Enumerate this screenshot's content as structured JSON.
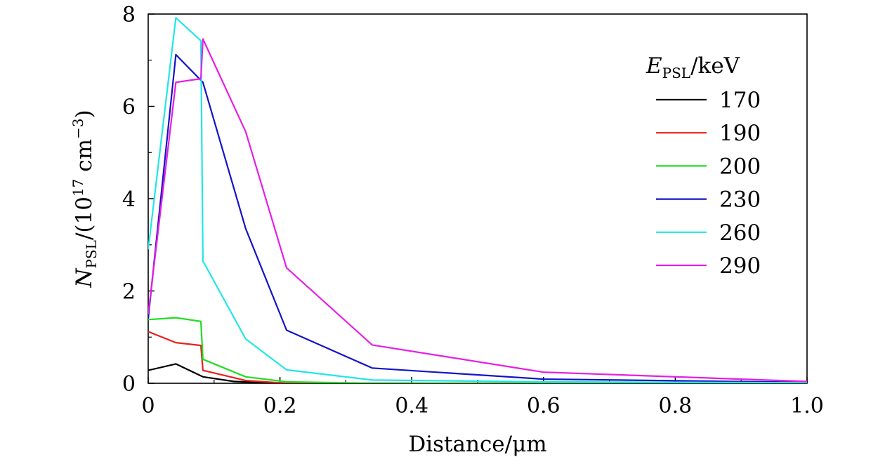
{
  "chart_data": {
    "type": "line",
    "title": "",
    "xlabel": "Distance/μm",
    "ylabel": {
      "symbol": "N",
      "subscript": "PSL",
      "unit_prefix": "/(10",
      "exponent": "17",
      "unit_mid": " cm",
      "unit_exponent": "−3",
      "unit_suffix": ")"
    },
    "xlim": [
      0,
      1.0
    ],
    "ylim": [
      0,
      8
    ],
    "x_ticks": [
      "0",
      "0.2",
      "0.4",
      "0.6",
      "0.8",
      "1.0"
    ],
    "y_ticks": [
      "0",
      "2",
      "4",
      "6",
      "8"
    ],
    "legend": {
      "title_symbol": "E",
      "title_subscript": "PSL",
      "title_unit": "/keV",
      "placement": "top-right"
    },
    "series": [
      {
        "name": "170",
        "color": "#000000",
        "x": [
          0.0,
          0.042,
          0.083,
          0.13,
          0.2,
          1.0
        ],
        "y": [
          0.28,
          0.42,
          0.14,
          0.04,
          0.0,
          0.0
        ]
      },
      {
        "name": "190",
        "color": "#e8201a",
        "x": [
          0.0,
          0.042,
          0.08,
          0.083,
          0.148,
          0.21,
          1.0
        ],
        "y": [
          1.12,
          0.88,
          0.82,
          0.28,
          0.06,
          0.0,
          0.0
        ]
      },
      {
        "name": "200",
        "color": "#22dd22",
        "x": [
          0.0,
          0.042,
          0.08,
          0.083,
          0.148,
          0.21,
          0.34,
          1.0
        ],
        "y": [
          1.38,
          1.42,
          1.34,
          0.52,
          0.14,
          0.03,
          0.0,
          0.0
        ]
      },
      {
        "name": "230",
        "color": "#1414c8",
        "x": [
          0.0,
          0.042,
          0.083,
          0.148,
          0.21,
          0.34,
          0.6,
          1.0
        ],
        "y": [
          1.4,
          7.12,
          6.52,
          3.35,
          1.15,
          0.33,
          0.09,
          0.02
        ]
      },
      {
        "name": "260",
        "color": "#22e6e6",
        "x": [
          0.0,
          0.042,
          0.08,
          0.083,
          0.148,
          0.21,
          0.34,
          0.6,
          1.0
        ],
        "y": [
          2.9,
          7.92,
          7.42,
          2.65,
          0.96,
          0.29,
          0.07,
          0.03,
          0.01
        ]
      },
      {
        "name": "290",
        "color": "#e61ee6",
        "x": [
          0.0,
          0.042,
          0.08,
          0.083,
          0.148,
          0.21,
          0.34,
          0.6,
          1.0
        ],
        "y": [
          1.5,
          6.52,
          6.6,
          7.46,
          5.45,
          2.5,
          0.83,
          0.24,
          0.04
        ]
      }
    ]
  }
}
